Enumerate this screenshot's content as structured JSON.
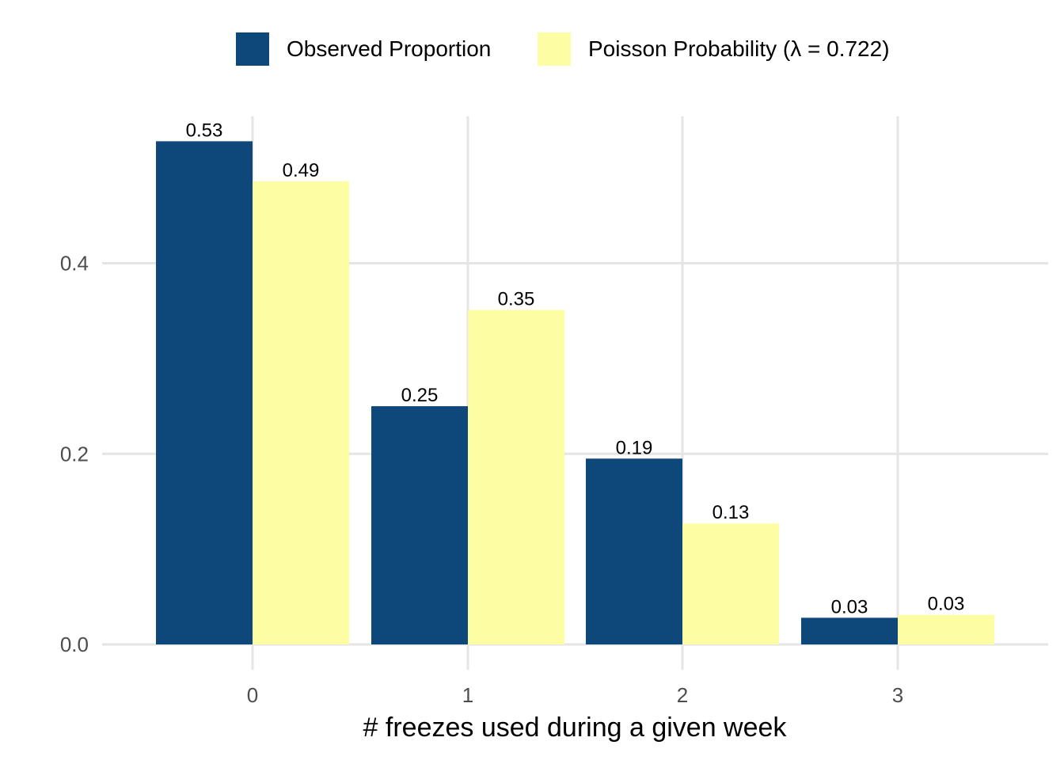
{
  "chart_data": {
    "type": "bar",
    "title": "",
    "xlabel": "# freezes used during a given week",
    "ylabel": "",
    "categories": [
      "0",
      "1",
      "2",
      "3"
    ],
    "ylim": [
      -0.02,
      0.555
    ],
    "y_ticks": [
      "0.0",
      "0.2",
      "0.4"
    ],
    "y_tick_values": [
      0.0,
      0.2,
      0.4
    ],
    "grid": true,
    "legend_position": "top",
    "series": [
      {
        "name": "Observed Proportion",
        "color": "#0E477A",
        "values": [
          0.528,
          0.25,
          0.195,
          0.028
        ],
        "labels": [
          "0.53",
          "0.25",
          "0.19",
          "0.03"
        ]
      },
      {
        "name": "Poisson Probability (λ = 0.722)",
        "color": "#FDFEA3",
        "values": [
          0.486,
          0.351,
          0.127,
          0.031
        ],
        "labels": [
          "0.49",
          "0.35",
          "0.13",
          "0.03"
        ]
      }
    ]
  }
}
